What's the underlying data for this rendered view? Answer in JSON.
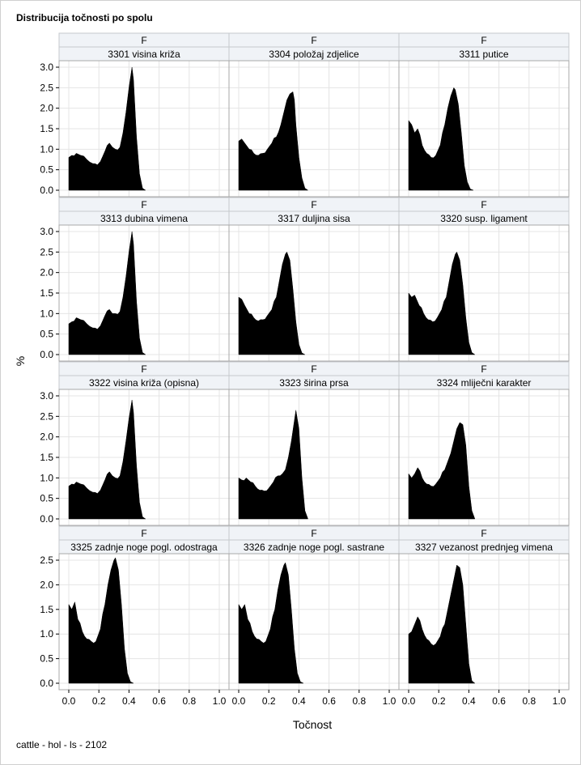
{
  "title": "Distribucija točnosti po spolu",
  "footnote": "cattle - hol - ls - 2102",
  "chart_data": {
    "type": "area",
    "facet_row_label": "F",
    "xlabel": "Točnost",
    "ylabel": "%",
    "x_ticks": [
      "0.0",
      "0.2",
      "0.4",
      "0.6",
      "0.8",
      "1.0"
    ],
    "x_tick_values": [
      0,
      0.2,
      0.4,
      0.6,
      0.8,
      1.0
    ],
    "xlim": [
      0,
      1.0
    ],
    "grid": true,
    "rows": [
      {
        "ylim": [
          0,
          3.0
        ],
        "y_ticks": [
          "0.0",
          "0.5",
          "1.0",
          "1.5",
          "2.0",
          "2.5",
          "3.0"
        ],
        "y_tick_values": [
          0,
          0.5,
          1.0,
          1.5,
          2.0,
          2.5,
          3.0
        ]
      },
      {
        "ylim": [
          0,
          3.0
        ],
        "y_ticks": [
          "0.0",
          "0.5",
          "1.0",
          "1.5",
          "2.0",
          "2.5",
          "3.0"
        ],
        "y_tick_values": [
          0,
          0.5,
          1.0,
          1.5,
          2.0,
          2.5,
          3.0
        ]
      },
      {
        "ylim": [
          0,
          3.0
        ],
        "y_ticks": [
          "0.0",
          "0.5",
          "1.0",
          "1.5",
          "2.0",
          "2.5",
          "3.0"
        ],
        "y_tick_values": [
          0,
          0.5,
          1.0,
          1.5,
          2.0,
          2.5,
          3.0
        ]
      },
      {
        "ylim": [
          0,
          2.5
        ],
        "y_ticks": [
          "0.0",
          "0.5",
          "1.0",
          "1.5",
          "2.0",
          "2.5"
        ],
        "y_tick_values": [
          0,
          0.5,
          1.0,
          1.5,
          2.0,
          2.5
        ]
      }
    ],
    "panels": [
      {
        "sex": "F",
        "label": "3301 visina križa",
        "x": [
          0.0,
          0.02,
          0.05,
          0.08,
          0.12,
          0.16,
          0.19,
          0.21,
          0.24,
          0.27,
          0.29,
          0.31,
          0.34,
          0.36,
          0.38,
          0.4,
          0.42,
          0.43,
          0.45,
          0.47,
          0.49,
          0.51
        ],
        "y": [
          0.8,
          0.85,
          0.9,
          0.85,
          0.75,
          0.65,
          0.62,
          0.7,
          0.95,
          1.15,
          1.05,
          1.0,
          1.05,
          1.4,
          1.9,
          2.5,
          3.0,
          2.7,
          1.3,
          0.4,
          0.05,
          0
        ]
      },
      {
        "sex": "F",
        "label": "3304 položaj zdjelice",
        "x": [
          0.0,
          0.02,
          0.04,
          0.07,
          0.1,
          0.13,
          0.16,
          0.19,
          0.22,
          0.25,
          0.28,
          0.3,
          0.32,
          0.34,
          0.36,
          0.37,
          0.38,
          0.4,
          0.42,
          0.44,
          0.46
        ],
        "y": [
          1.2,
          1.25,
          1.15,
          1.0,
          0.9,
          0.85,
          0.9,
          1.0,
          1.15,
          1.3,
          1.6,
          1.9,
          2.2,
          2.35,
          2.4,
          2.2,
          1.6,
          0.8,
          0.3,
          0.05,
          0
        ]
      },
      {
        "sex": "F",
        "label": "3311 putice",
        "x": [
          0.0,
          0.02,
          0.04,
          0.06,
          0.09,
          0.12,
          0.15,
          0.18,
          0.21,
          0.24,
          0.26,
          0.28,
          0.3,
          0.31,
          0.33,
          0.35,
          0.37,
          0.39,
          0.41,
          0.43
        ],
        "y": [
          1.7,
          1.6,
          1.4,
          1.5,
          1.1,
          0.9,
          0.8,
          0.85,
          1.1,
          1.6,
          2.0,
          2.3,
          2.5,
          2.45,
          2.1,
          1.4,
          0.6,
          0.2,
          0.03,
          0
        ]
      },
      {
        "sex": "F",
        "label": "3313 dubina vimena",
        "x": [
          0.0,
          0.02,
          0.05,
          0.08,
          0.12,
          0.16,
          0.19,
          0.21,
          0.24,
          0.27,
          0.29,
          0.31,
          0.34,
          0.36,
          0.38,
          0.4,
          0.42,
          0.43,
          0.45,
          0.47,
          0.49,
          0.51
        ],
        "y": [
          0.75,
          0.8,
          0.9,
          0.85,
          0.75,
          0.65,
          0.62,
          0.7,
          0.95,
          1.1,
          1.0,
          1.0,
          1.05,
          1.4,
          1.9,
          2.5,
          3.0,
          2.7,
          1.3,
          0.4,
          0.05,
          0
        ]
      },
      {
        "sex": "F",
        "label": "3317 duljina sisa",
        "x": [
          0.0,
          0.02,
          0.04,
          0.07,
          0.1,
          0.13,
          0.16,
          0.19,
          0.22,
          0.25,
          0.27,
          0.29,
          0.31,
          0.32,
          0.34,
          0.36,
          0.38,
          0.4,
          0.42,
          0.44
        ],
        "y": [
          1.4,
          1.35,
          1.2,
          1.0,
          0.9,
          0.82,
          0.85,
          0.95,
          1.1,
          1.4,
          1.8,
          2.2,
          2.45,
          2.5,
          2.3,
          1.6,
          0.8,
          0.25,
          0.04,
          0
        ]
      },
      {
        "sex": "F",
        "label": "3320 susp. ligament",
        "x": [
          0.0,
          0.02,
          0.04,
          0.07,
          0.1,
          0.13,
          0.16,
          0.19,
          0.22,
          0.25,
          0.27,
          0.29,
          0.31,
          0.32,
          0.34,
          0.36,
          0.38,
          0.4,
          0.42,
          0.44
        ],
        "y": [
          1.5,
          1.4,
          1.45,
          1.2,
          1.0,
          0.85,
          0.8,
          0.9,
          1.1,
          1.4,
          1.8,
          2.2,
          2.45,
          2.5,
          2.3,
          1.7,
          0.9,
          0.3,
          0.05,
          0
        ]
      },
      {
        "sex": "F",
        "label": "3322 visina križa (opisna)",
        "x": [
          0.0,
          0.02,
          0.05,
          0.08,
          0.12,
          0.16,
          0.19,
          0.21,
          0.24,
          0.27,
          0.29,
          0.31,
          0.34,
          0.36,
          0.38,
          0.4,
          0.42,
          0.43,
          0.45,
          0.47,
          0.49,
          0.51
        ],
        "y": [
          0.8,
          0.85,
          0.9,
          0.85,
          0.75,
          0.65,
          0.62,
          0.7,
          0.95,
          1.15,
          1.05,
          1.0,
          1.05,
          1.4,
          1.9,
          2.45,
          2.9,
          2.6,
          1.3,
          0.4,
          0.05,
          0
        ]
      },
      {
        "sex": "F",
        "label": "3323 širina prsa",
        "x": [
          0.0,
          0.02,
          0.05,
          0.08,
          0.11,
          0.14,
          0.17,
          0.2,
          0.23,
          0.26,
          0.29,
          0.31,
          0.33,
          0.35,
          0.37,
          0.38,
          0.4,
          0.42,
          0.44,
          0.46
        ],
        "y": [
          1.0,
          0.95,
          1.0,
          0.9,
          0.8,
          0.7,
          0.68,
          0.75,
          0.9,
          1.05,
          1.1,
          1.2,
          1.5,
          1.9,
          2.4,
          2.65,
          2.2,
          1.0,
          0.2,
          0
        ]
      },
      {
        "sex": "F",
        "label": "3324 mliječni karakter",
        "x": [
          0.0,
          0.02,
          0.04,
          0.06,
          0.09,
          0.12,
          0.15,
          0.18,
          0.21,
          0.24,
          0.26,
          0.28,
          0.3,
          0.32,
          0.34,
          0.36,
          0.38,
          0.4,
          0.42,
          0.44
        ],
        "y": [
          1.1,
          1.0,
          1.1,
          1.25,
          1.0,
          0.85,
          0.8,
          0.85,
          1.0,
          1.2,
          1.4,
          1.6,
          1.9,
          2.2,
          2.35,
          2.3,
          1.8,
          0.8,
          0.2,
          0
        ]
      },
      {
        "sex": "F",
        "label": "3325 zadnje noge pogl. odostraga",
        "x": [
          0.0,
          0.02,
          0.04,
          0.06,
          0.09,
          0.12,
          0.15,
          0.18,
          0.21,
          0.24,
          0.26,
          0.28,
          0.3,
          0.31,
          0.33,
          0.35,
          0.37,
          0.39,
          0.41,
          0.43
        ],
        "y": [
          1.6,
          1.5,
          1.65,
          1.3,
          1.05,
          0.9,
          0.85,
          0.85,
          1.1,
          1.6,
          2.0,
          2.3,
          2.5,
          2.55,
          2.3,
          1.6,
          0.7,
          0.2,
          0.03,
          0
        ]
      },
      {
        "sex": "F",
        "label": "3326 zadnje noge pogl. sastrane",
        "x": [
          0.0,
          0.02,
          0.04,
          0.06,
          0.09,
          0.12,
          0.15,
          0.18,
          0.21,
          0.24,
          0.26,
          0.28,
          0.3,
          0.31,
          0.33,
          0.35,
          0.37,
          0.39,
          0.41,
          0.43
        ],
        "y": [
          1.6,
          1.5,
          1.6,
          1.3,
          1.05,
          0.9,
          0.85,
          0.85,
          1.1,
          1.5,
          1.9,
          2.2,
          2.4,
          2.45,
          2.2,
          1.5,
          0.7,
          0.2,
          0.03,
          0
        ]
      },
      {
        "sex": "F",
        "label": "3327 vezanost prednjeg vimena",
        "x": [
          0.0,
          0.02,
          0.04,
          0.06,
          0.09,
          0.12,
          0.15,
          0.18,
          0.21,
          0.24,
          0.26,
          0.28,
          0.3,
          0.32,
          0.34,
          0.36,
          0.38,
          0.4,
          0.42,
          0.44
        ],
        "y": [
          1.0,
          1.05,
          1.2,
          1.35,
          1.1,
          0.9,
          0.8,
          0.8,
          0.95,
          1.2,
          1.5,
          1.8,
          2.1,
          2.4,
          2.35,
          2.0,
          1.2,
          0.4,
          0.05,
          0
        ]
      }
    ]
  }
}
